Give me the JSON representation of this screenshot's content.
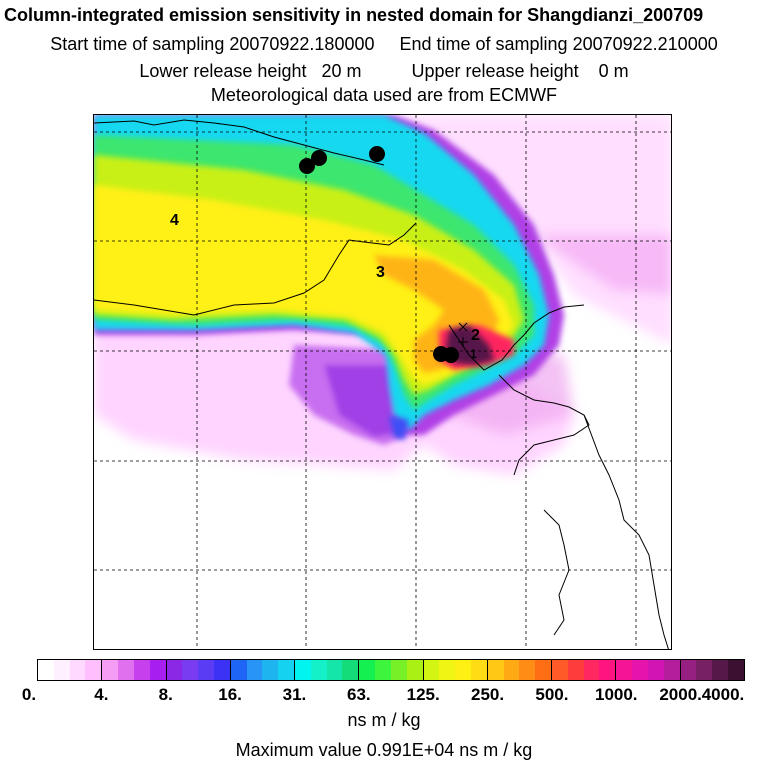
{
  "title": {
    "line1": "Column-integrated emission sensitivity in nested domain for Shangdianzi_200709",
    "line2": "Start time of sampling 20070922.180000     End time of sampling 20070922.210000",
    "line3": "Lower release height   20 m          Upper release height    0 m",
    "line4": "Meteorological data used are from ECMWF"
  },
  "map": {
    "labels": [
      "4",
      "3",
      "2",
      "1"
    ],
    "receptor_marker_color": "#000000"
  },
  "colorbar": {
    "tick_labels": [
      "0.",
      "4.",
      "8.",
      "16.",
      "31.",
      "63.",
      "125.",
      "250.",
      "500.",
      "1000.",
      "2000.",
      "4000."
    ],
    "colors": [
      "#ffffff",
      "#fff0ff",
      "#ffd9ff",
      "#ffbfff",
      "#f59cf5",
      "#e070ee",
      "#c640ee",
      "#a61ef0",
      "#8a28e6",
      "#7a3cf0",
      "#5a3cf5",
      "#3c32f5",
      "#1e64f5",
      "#2894f5",
      "#1eb4f0",
      "#14d2f0",
      "#00f5f0",
      "#14f0c8",
      "#14e6aa",
      "#14dc78",
      "#14f050",
      "#3cf53c",
      "#78f028",
      "#aaf014",
      "#d2f514",
      "#f0f514",
      "#fff014",
      "#ffdc14",
      "#ffc814",
      "#ffaa14",
      "#ff8c14",
      "#ff6e14",
      "#ff5a28",
      "#ff3c3c",
      "#ff2860",
      "#ff1480",
      "#f51496",
      "#e614aa",
      "#d214b4",
      "#b41e9c",
      "#962082",
      "#782064",
      "#561848",
      "#3c1030"
    ],
    "unit": "ns m / kg",
    "max_value_text": "Maximum value  0.991E+04 ns m / kg"
  }
}
